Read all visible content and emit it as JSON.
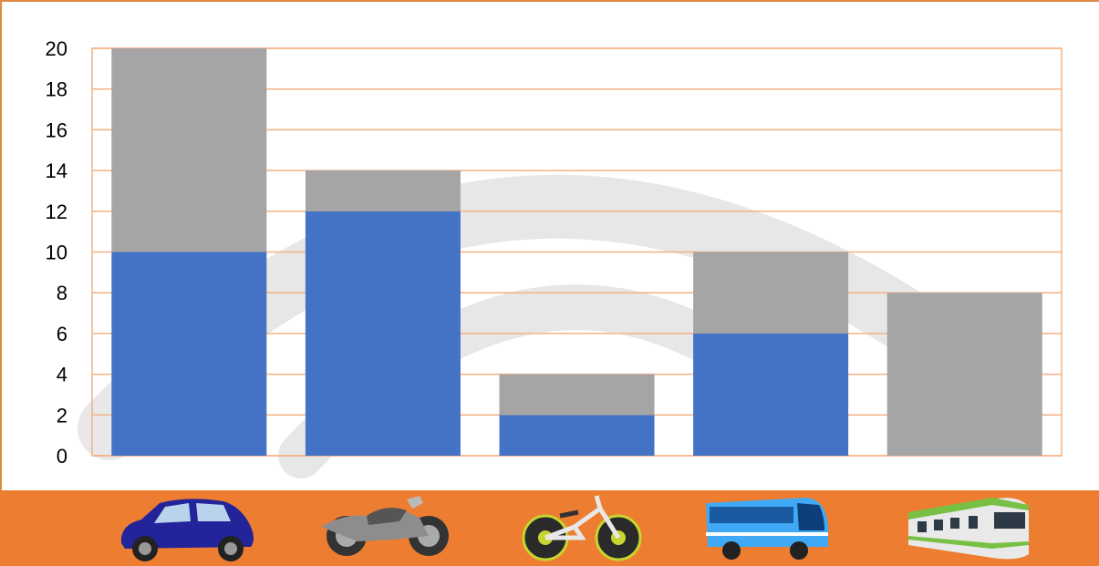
{
  "colors": {
    "series_blue": "#4472c4",
    "series_gray": "#a5a5a5",
    "gridline": "#f4b183",
    "icon_strip": "#ed7d31"
  },
  "chart_data": {
    "type": "bar",
    "stacked": true,
    "categories": [
      "car",
      "motorcycle",
      "bicycle",
      "bus",
      "train"
    ],
    "series": [
      {
        "values": [
          10,
          12,
          2,
          6,
          0
        ]
      },
      {
        "values": [
          10,
          2,
          2,
          4,
          8
        ]
      }
    ],
    "ylim": [
      0,
      20
    ],
    "yticks": [
      "0",
      "2",
      "4",
      "6",
      "8",
      "10",
      "12",
      "14",
      "16",
      "18",
      "20"
    ],
    "grid": true,
    "legend": "none"
  },
  "icons": [
    "car-icon",
    "motorcycle-icon",
    "bicycle-icon",
    "bus-icon",
    "train-icon"
  ]
}
